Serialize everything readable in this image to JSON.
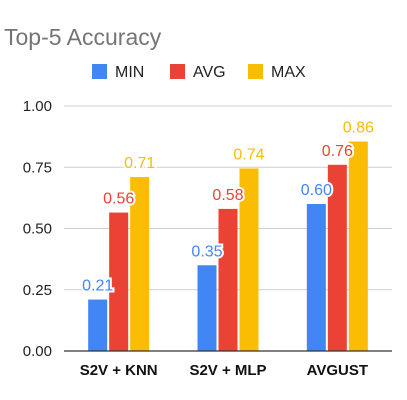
{
  "chart_data": {
    "type": "bar",
    "title": "Top-5 Accuracy",
    "xlabel": "",
    "ylabel": "",
    "categories": [
      "S2V + KNN",
      "S2V + MLP",
      "AVGUST"
    ],
    "series": [
      {
        "name": "MIN",
        "color": "#4285f4",
        "values": [
          0.21,
          0.35,
          0.6
        ],
        "labels": [
          "0.21",
          "0.35",
          "0.60"
        ]
      },
      {
        "name": "AVG",
        "color": "#ea4335",
        "values": [
          0.565,
          0.58,
          0.76
        ],
        "labels": [
          "0.56",
          "0.58",
          "0.76"
        ]
      },
      {
        "name": "MAX",
        "color": "#fbbc04",
        "values": [
          0.71,
          0.745,
          0.855
        ],
        "labels": [
          "0.71",
          "0.74",
          "0.86"
        ]
      }
    ],
    "ylim": [
      0,
      1
    ],
    "yticks": [
      {
        "value": 0,
        "label": "0.00"
      },
      {
        "value": 0.25,
        "label": "0.25"
      },
      {
        "value": 0.5,
        "label": "0.50"
      },
      {
        "value": 0.75,
        "label": "0.75"
      },
      {
        "value": 1,
        "label": "1.00"
      }
    ],
    "grid": true,
    "legend_position": "top"
  }
}
